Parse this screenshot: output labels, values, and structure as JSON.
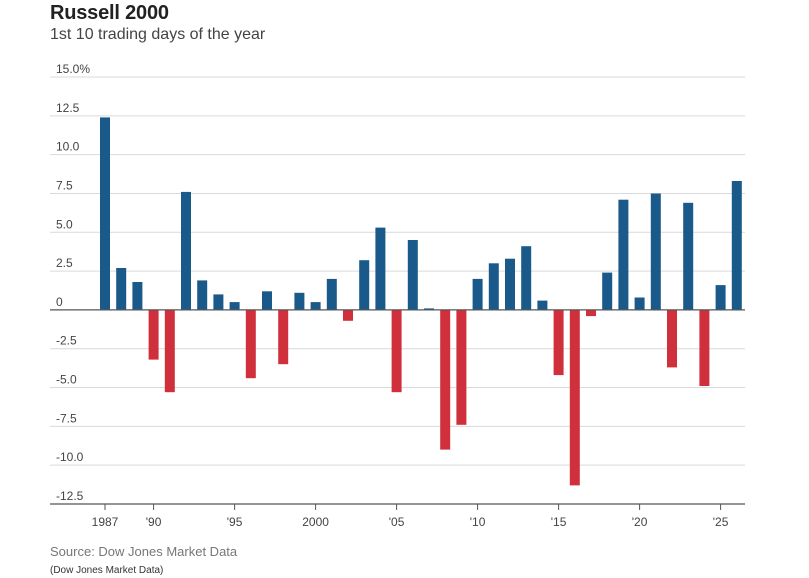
{
  "header": {
    "title": "Russell 2000",
    "subtitle": "1st 10 trading days of the year"
  },
  "footer": {
    "source": "Source: Dow Jones Market Data",
    "note": "(Dow Jones Market Data)"
  },
  "colors": {
    "positive": "#1a5a8a",
    "negative": "#d0303c",
    "grid": "#d9d9d9",
    "zero_line": "#555555"
  },
  "chart_data": {
    "type": "bar",
    "title": "Russell 2000",
    "subtitle": "1st 10 trading days of the year",
    "xlabel": "",
    "ylabel": "",
    "ylim": [
      -12.5,
      15.0
    ],
    "grid": true,
    "y_ticks": [
      {
        "value": 15.0,
        "label": "15.0%"
      },
      {
        "value": 12.5,
        "label": "12.5"
      },
      {
        "value": 10.0,
        "label": "10.0"
      },
      {
        "value": 7.5,
        "label": "7.5"
      },
      {
        "value": 5.0,
        "label": "5.0"
      },
      {
        "value": 2.5,
        "label": "2.5"
      },
      {
        "value": 0,
        "label": "0"
      },
      {
        "value": -2.5,
        "label": "-2.5"
      },
      {
        "value": -5.0,
        "label": "-5.0"
      },
      {
        "value": -7.5,
        "label": "-7.5"
      },
      {
        "value": -10.0,
        "label": "-10.0"
      },
      {
        "value": -12.5,
        "label": "-12.5"
      }
    ],
    "x_ticks": [
      {
        "year": 1987,
        "label": "1987"
      },
      {
        "year": 1990,
        "label": "'90"
      },
      {
        "year": 1995,
        "label": "'95"
      },
      {
        "year": 2000,
        "label": "2000"
      },
      {
        "year": 2005,
        "label": "'05"
      },
      {
        "year": 2010,
        "label": "'10"
      },
      {
        "year": 2015,
        "label": "'15"
      },
      {
        "year": 2020,
        "label": "'20"
      },
      {
        "year": 2025,
        "label": "'25"
      }
    ],
    "categories": [
      1987,
      1988,
      1989,
      1990,
      1991,
      1992,
      1993,
      1994,
      1995,
      1996,
      1997,
      1998,
      1999,
      2000,
      2001,
      2002,
      2003,
      2004,
      2005,
      2006,
      2007,
      2008,
      2009,
      2010,
      2011,
      2012,
      2013,
      2014,
      2015,
      2016,
      2017,
      2018,
      2019,
      2020,
      2021,
      2022,
      2023,
      2024,
      2025,
      2026
    ],
    "values": [
      12.4,
      2.7,
      1.8,
      -3.2,
      -5.3,
      7.6,
      1.9,
      1.0,
      0.5,
      -4.4,
      1.2,
      -3.5,
      1.1,
      0.5,
      2.0,
      -0.7,
      3.2,
      5.3,
      -5.3,
      4.5,
      0.1,
      -9.0,
      -7.4,
      2.0,
      3.0,
      3.3,
      4.1,
      0.6,
      -4.2,
      -11.3,
      -0.4,
      2.4,
      7.1,
      0.8,
      7.5,
      -3.7,
      6.9,
      -4.9,
      1.6,
      8.3
    ]
  }
}
